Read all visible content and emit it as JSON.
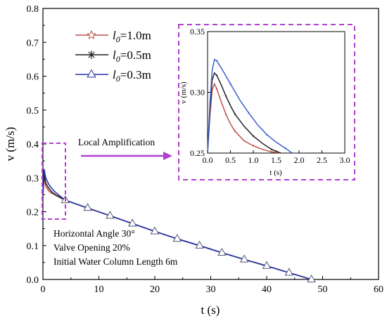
{
  "chart_data": [
    {
      "type": "line",
      "xlabel": "t (s)",
      "ylabel": "v (m/s)",
      "xlim": [
        0,
        60
      ],
      "ylim": [
        0,
        0.8
      ],
      "xticks": [
        "0",
        "10",
        "20",
        "30",
        "40",
        "50",
        "60"
      ],
      "yticks": [
        "0.0",
        "0.1",
        "0.2",
        "0.3",
        "0.4",
        "0.5",
        "0.6",
        "0.7",
        "0.8"
      ],
      "legend_position": "top-left",
      "series": [
        {
          "name_prefix": "l",
          "name_sub": "0",
          "name_suffix": "=1.0m",
          "color": "#c0504d",
          "marker": "star",
          "x": [
            0,
            0.2,
            0.5,
            1.0,
            1.5,
            2.0,
            3.0,
            4.0,
            8,
            12,
            16,
            20,
            24,
            28,
            32,
            36,
            40,
            44,
            48
          ],
          "y": [
            0.25,
            0.3,
            0.275,
            0.262,
            0.255,
            0.251,
            0.242,
            0.234,
            0.211,
            0.188,
            0.165,
            0.142,
            0.12,
            0.1,
            0.079,
            0.059,
            0.04,
            0.02,
            0.0
          ]
        },
        {
          "name_prefix": "l",
          "name_sub": "0",
          "name_suffix": "=0.5m",
          "color": "#222222",
          "marker": "asterisk",
          "x": [
            0,
            0.2,
            0.5,
            1.0,
            1.5,
            2.0,
            3.0,
            4.0,
            8,
            12,
            16,
            20,
            24,
            28,
            32,
            36,
            40,
            44,
            48
          ],
          "y": [
            0.25,
            0.31,
            0.285,
            0.27,
            0.26,
            0.253,
            0.243,
            0.234,
            0.211,
            0.188,
            0.165,
            0.142,
            0.12,
            0.1,
            0.079,
            0.059,
            0.04,
            0.02,
            0.0
          ]
        },
        {
          "name_prefix": "l",
          "name_sub": "0",
          "name_suffix": "=0.3m",
          "color": "#2233aa",
          "marker": "triangle",
          "x": [
            0,
            0.2,
            0.5,
            1.0,
            1.5,
            2.0,
            3.0,
            4.0,
            8,
            12,
            16,
            20,
            24,
            28,
            32,
            36,
            40,
            44,
            48
          ],
          "y": [
            0.25,
            0.326,
            0.3,
            0.282,
            0.27,
            0.261,
            0.247,
            0.234,
            0.211,
            0.188,
            0.165,
            0.142,
            0.12,
            0.1,
            0.079,
            0.059,
            0.04,
            0.02,
            0.0
          ]
        }
      ]
    },
    {
      "type": "line",
      "xlabel": "t (s)",
      "ylabel": "v (m/s)",
      "xlim": [
        0,
        3.0
      ],
      "ylim": [
        0.25,
        0.35
      ],
      "xticks": [
        "0.0",
        "0.5",
        "1.0",
        "1.5",
        "2.0",
        "2.5",
        "3.0"
      ],
      "yticks": [
        "0.25",
        "0.30",
        "0.35"
      ],
      "series": [
        {
          "color": "#c0504d",
          "x": [
            0.0,
            0.05,
            0.1,
            0.15,
            0.2,
            0.3,
            0.4,
            0.5,
            0.6,
            0.8,
            1.0,
            1.2,
            1.4,
            1.6
          ],
          "y": [
            0.25,
            0.28,
            0.302,
            0.307,
            0.303,
            0.292,
            0.282,
            0.274,
            0.268,
            0.26,
            0.256,
            0.253,
            0.251,
            0.25
          ]
        },
        {
          "color": "#222222",
          "x": [
            0.0,
            0.05,
            0.1,
            0.15,
            0.2,
            0.3,
            0.4,
            0.5,
            0.6,
            0.8,
            1.0,
            1.2,
            1.4,
            1.6
          ],
          "y": [
            0.25,
            0.285,
            0.31,
            0.316,
            0.314,
            0.306,
            0.297,
            0.289,
            0.282,
            0.272,
            0.264,
            0.258,
            0.253,
            0.25
          ]
        },
        {
          "color": "#3a5fcd",
          "x": [
            0.0,
            0.05,
            0.1,
            0.15,
            0.2,
            0.3,
            0.5,
            0.7,
            0.9,
            1.1,
            1.3,
            1.5,
            1.7,
            1.85
          ],
          "y": [
            0.25,
            0.29,
            0.318,
            0.327,
            0.326,
            0.32,
            0.307,
            0.294,
            0.283,
            0.273,
            0.265,
            0.259,
            0.254,
            0.25
          ]
        }
      ]
    }
  ],
  "annotations": {
    "arrow_label": "Local Amplification",
    "conditions": [
      "Horizontal Angle 30°",
      "Valve Opening 20%",
      "Initial Water Column Length 6m"
    ]
  },
  "colors": {
    "highlight_box": "#b040d0"
  }
}
